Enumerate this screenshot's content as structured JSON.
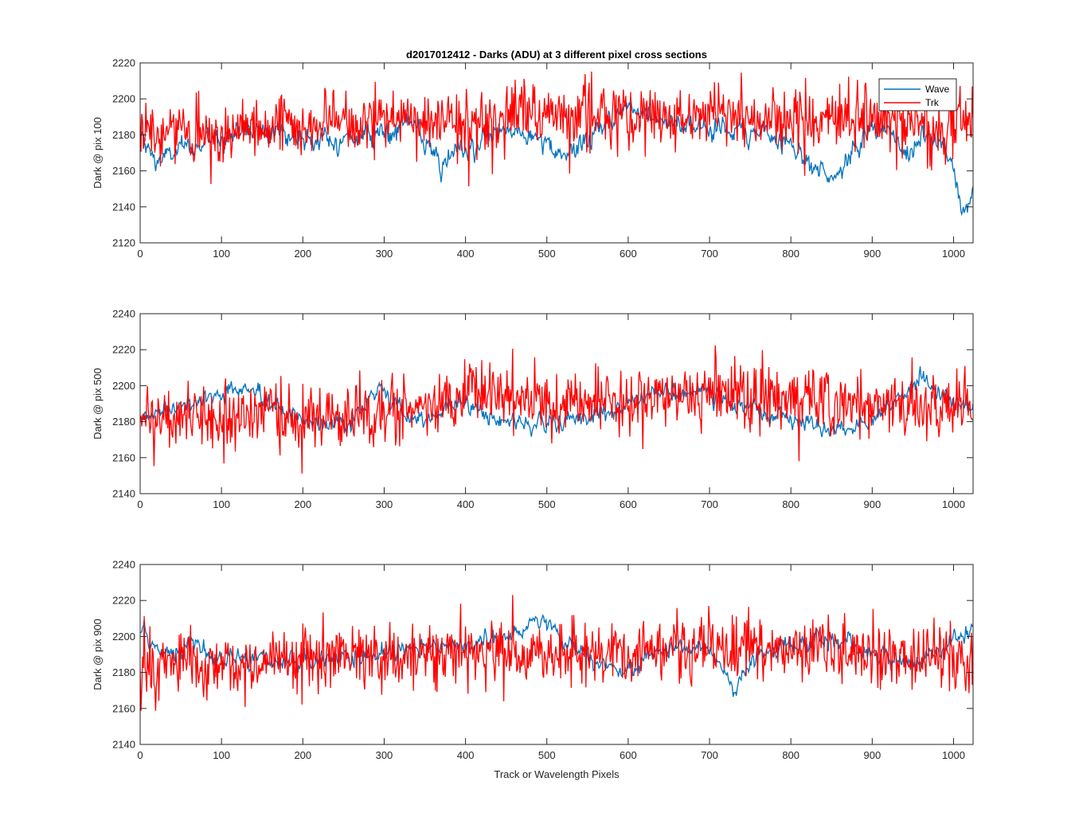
{
  "figure": {
    "title": "d2017012412 - Darks (ADU) at 3 different pixel cross sections",
    "xlabel": "Track or Wavelength Pixels"
  },
  "legend": {
    "entries": [
      {
        "name": "Wave",
        "color": "#0072BD"
      },
      {
        "name": "Trk",
        "color": "#FF0000"
      }
    ],
    "placement": "top-right of first panel"
  },
  "chart_data": [
    {
      "type": "line",
      "title": "d2017012412 - Darks (ADU) at 3 different pixel cross sections",
      "xlabel": "",
      "ylabel": "Dark @ pix 100",
      "xlim": [
        0,
        1024
      ],
      "ylim": [
        2120,
        2220
      ],
      "xticks": [
        0,
        100,
        200,
        300,
        400,
        500,
        600,
        700,
        800,
        900,
        1000
      ],
      "yticks": [
        2120,
        2140,
        2160,
        2180,
        2200,
        2220
      ],
      "legend": true,
      "grid": false,
      "series": [
        {
          "name": "Wave",
          "color": "#0072BD",
          "noise": 6,
          "profile": [
            [
              0,
              2178
            ],
            [
              20,
              2165
            ],
            [
              40,
              2170
            ],
            [
              60,
              2172
            ],
            [
              100,
              2180
            ],
            [
              150,
              2185
            ],
            [
              200,
              2178
            ],
            [
              250,
              2177
            ],
            [
              300,
              2182
            ],
            [
              330,
              2188
            ],
            [
              350,
              2175
            ],
            [
              370,
              2162
            ],
            [
              400,
              2172
            ],
            [
              450,
              2183
            ],
            [
              480,
              2180
            ],
            [
              520,
              2166
            ],
            [
              560,
              2182
            ],
            [
              600,
              2196
            ],
            [
              620,
              2194
            ],
            [
              660,
              2186
            ],
            [
              700,
              2184
            ],
            [
              750,
              2182
            ],
            [
              780,
              2178
            ],
            [
              800,
              2176
            ],
            [
              820,
              2168
            ],
            [
              840,
              2157
            ],
            [
              860,
              2160
            ],
            [
              880,
              2172
            ],
            [
              900,
              2184
            ],
            [
              920,
              2182
            ],
            [
              940,
              2170
            ],
            [
              960,
              2178
            ],
            [
              980,
              2178
            ],
            [
              1000,
              2160
            ],
            [
              1010,
              2138
            ],
            [
              1024,
              2148
            ]
          ]
        },
        {
          "name": "Trk",
          "color": "#FF0000",
          "noise": 9,
          "profile": [
            [
              0,
              2180
            ],
            [
              100,
              2182
            ],
            [
              200,
              2185
            ],
            [
              300,
              2188
            ],
            [
              400,
              2188
            ],
            [
              500,
              2190
            ],
            [
              600,
              2190
            ],
            [
              700,
              2190
            ],
            [
              800,
              2188
            ],
            [
              900,
              2188
            ],
            [
              1000,
              2185
            ],
            [
              1024,
              2188
            ]
          ]
        }
      ]
    },
    {
      "type": "line",
      "title": "",
      "xlabel": "",
      "ylabel": "Dark @ pix 500",
      "xlim": [
        0,
        1024
      ],
      "ylim": [
        2140,
        2240
      ],
      "xticks": [
        0,
        100,
        200,
        300,
        400,
        500,
        600,
        700,
        800,
        900,
        1000
      ],
      "yticks": [
        2140,
        2160,
        2180,
        2200,
        2220,
        2240
      ],
      "legend": false,
      "grid": false,
      "series": [
        {
          "name": "Wave",
          "color": "#0072BD",
          "noise": 5,
          "profile": [
            [
              0,
              2183
            ],
            [
              60,
              2190
            ],
            [
              120,
              2198
            ],
            [
              140,
              2195
            ],
            [
              200,
              2180
            ],
            [
              260,
              2178
            ],
            [
              280,
              2195
            ],
            [
              300,
              2196
            ],
            [
              340,
              2182
            ],
            [
              400,
              2190
            ],
            [
              440,
              2182
            ],
            [
              480,
              2178
            ],
            [
              540,
              2182
            ],
            [
              580,
              2185
            ],
            [
              600,
              2192
            ],
            [
              640,
              2196
            ],
            [
              700,
              2195
            ],
            [
              740,
              2188
            ],
            [
              800,
              2180
            ],
            [
              850,
              2175
            ],
            [
              900,
              2180
            ],
            [
              940,
              2195
            ],
            [
              960,
              2205
            ],
            [
              1000,
              2192
            ],
            [
              1024,
              2190
            ]
          ]
        },
        {
          "name": "Trk",
          "color": "#FF0000",
          "noise": 9,
          "profile": [
            [
              0,
              2183
            ],
            [
              100,
              2182
            ],
            [
              200,
              2180
            ],
            [
              300,
              2185
            ],
            [
              400,
              2195
            ],
            [
              450,
              2197
            ],
            [
              500,
              2190
            ],
            [
              600,
              2190
            ],
            [
              700,
              2195
            ],
            [
              800,
              2192
            ],
            [
              900,
              2190
            ],
            [
              1024,
              2188
            ]
          ]
        }
      ]
    },
    {
      "type": "line",
      "title": "",
      "xlabel": "Track or Wavelength Pixels",
      "ylabel": "Dark @ pix 900",
      "xlim": [
        0,
        1024
      ],
      "ylim": [
        2140,
        2240
      ],
      "xticks": [
        0,
        100,
        200,
        300,
        400,
        500,
        600,
        700,
        800,
        900,
        1000
      ],
      "yticks": [
        2140,
        2160,
        2180,
        2200,
        2220,
        2240
      ],
      "legend": false,
      "grid": false,
      "series": [
        {
          "name": "Wave",
          "color": "#0072BD",
          "noise": 5,
          "profile": [
            [
              0,
              2205
            ],
            [
              20,
              2190
            ],
            [
              60,
              2195
            ],
            [
              100,
              2185
            ],
            [
              150,
              2188
            ],
            [
              200,
              2185
            ],
            [
              300,
              2190
            ],
            [
              380,
              2195
            ],
            [
              450,
              2200
            ],
            [
              500,
              2208
            ],
            [
              520,
              2198
            ],
            [
              560,
              2185
            ],
            [
              600,
              2180
            ],
            [
              640,
              2192
            ],
            [
              700,
              2195
            ],
            [
              730,
              2170
            ],
            [
              760,
              2190
            ],
            [
              800,
              2195
            ],
            [
              850,
              2200
            ],
            [
              900,
              2190
            ],
            [
              950,
              2185
            ],
            [
              990,
              2195
            ],
            [
              1024,
              2205
            ]
          ]
        },
        {
          "name": "Trk",
          "color": "#FF0000",
          "noise": 9,
          "profile": [
            [
              0,
              2185
            ],
            [
              100,
              2183
            ],
            [
              200,
              2188
            ],
            [
              300,
              2190
            ],
            [
              400,
              2192
            ],
            [
              500,
              2190
            ],
            [
              600,
              2190
            ],
            [
              700,
              2195
            ],
            [
              800,
              2193
            ],
            [
              900,
              2190
            ],
            [
              1024,
              2185
            ]
          ]
        }
      ]
    }
  ]
}
